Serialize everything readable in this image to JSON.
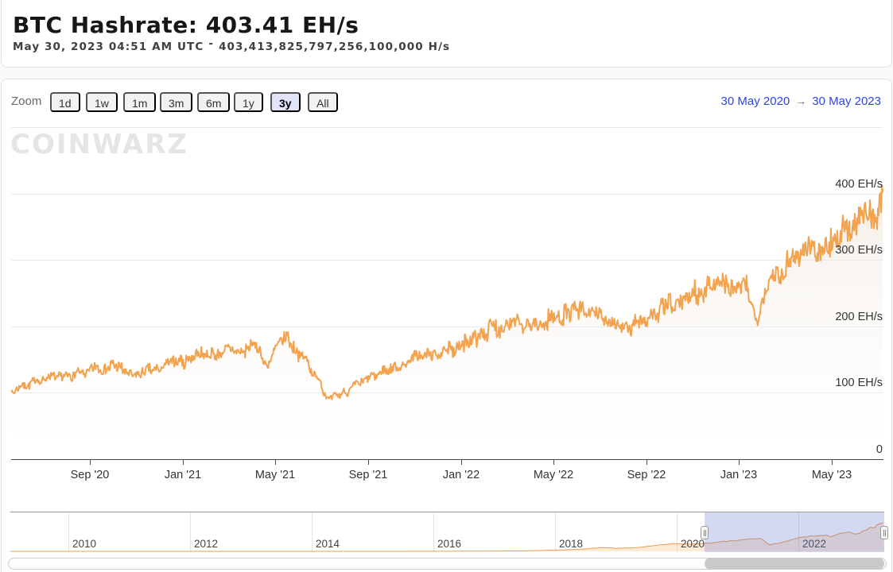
{
  "header": {
    "title": "BTC Hashrate: 403.41 EH/s",
    "subtitle_date": "May 30, 2023 04:51 AM UTC",
    "subtitle_sep": "-",
    "subtitle_value": "403,413,825,797,256,100,000 H/s"
  },
  "watermark": "COINWARZ",
  "toolbar": {
    "zoom_label": "Zoom",
    "buttons": [
      "1d",
      "1w",
      "1m",
      "3m",
      "6m",
      "1y",
      "3y",
      "All"
    ],
    "selected": "3y",
    "range_from": "30 May 2020",
    "range_arrow": "→",
    "range_to": "30 May 2023"
  },
  "colors": {
    "series_orange": "#f2a350",
    "area_top": "rgba(236,222,206,0.55)",
    "area_bottom": "rgba(255,255,255,0.05)",
    "nav_area": "rgba(244,164,78,0.22)",
    "link_blue": "#2e44e8",
    "selected_button_bg": "#e2e4f8",
    "mask_blue": "rgba(102,119,205,0.28)"
  },
  "chart_data": {
    "type": "area",
    "title": "BTC Hashrate",
    "unit": "EH/s",
    "current_value_ehs": 403.41,
    "legend": "none",
    "grid": "horizontal",
    "x_range": [
      "2020-05-30",
      "2023-05-30"
    ],
    "ylim": [
      0,
      501
    ],
    "y_ticks": [
      "400 EH/s",
      "300 EH/s",
      "200 EH/s",
      "100 EH/s",
      "0"
    ],
    "y_tick_values": [
      400,
      300,
      200,
      100,
      0
    ],
    "x_ticks": [
      "Sep '20",
      "Jan '21",
      "May '21",
      "Sep '21",
      "Jan '22",
      "May '22",
      "Sep '22",
      "Jan '23",
      "May '23"
    ],
    "series": [
      {
        "name": "BTC Hashrate (EH/s)",
        "waypoints": [
          [
            "2020-05-30",
            102
          ],
          [
            "2020-06-15",
            112
          ],
          [
            "2020-07-01",
            118
          ],
          [
            "2020-07-20",
            123
          ],
          [
            "2020-08-10",
            125
          ],
          [
            "2020-09-01",
            133
          ],
          [
            "2020-09-20",
            139
          ],
          [
            "2020-10-05",
            141
          ],
          [
            "2020-10-20",
            133
          ],
          [
            "2020-11-01",
            123
          ],
          [
            "2020-11-15",
            131
          ],
          [
            "2020-12-01",
            136
          ],
          [
            "2020-12-20",
            143
          ],
          [
            "2021-01-10",
            152
          ],
          [
            "2021-01-25",
            157
          ],
          [
            "2021-02-10",
            155
          ],
          [
            "2021-03-01",
            163
          ],
          [
            "2021-03-20",
            166
          ],
          [
            "2021-04-05",
            172
          ],
          [
            "2021-04-16",
            142
          ],
          [
            "2021-04-28",
            168
          ],
          [
            "2021-05-10",
            182
          ],
          [
            "2021-05-20",
            172
          ],
          [
            "2021-06-05",
            148
          ],
          [
            "2021-06-20",
            122
          ],
          [
            "2021-07-03",
            89
          ],
          [
            "2021-07-20",
            100
          ],
          [
            "2021-08-05",
            112
          ],
          [
            "2021-08-25",
            122
          ],
          [
            "2021-09-10",
            132
          ],
          [
            "2021-09-25",
            140
          ],
          [
            "2021-10-10",
            147
          ],
          [
            "2021-10-25",
            153
          ],
          [
            "2021-11-10",
            159
          ],
          [
            "2021-11-25",
            163
          ],
          [
            "2021-12-10",
            171
          ],
          [
            "2021-12-25",
            176
          ],
          [
            "2022-01-10",
            191
          ],
          [
            "2022-01-25",
            196
          ],
          [
            "2022-02-10",
            202
          ],
          [
            "2022-02-25",
            206
          ],
          [
            "2022-03-10",
            201
          ],
          [
            "2022-03-25",
            206
          ],
          [
            "2022-04-10",
            214
          ],
          [
            "2022-04-25",
            221
          ],
          [
            "2022-05-10",
            223
          ],
          [
            "2022-05-25",
            218
          ],
          [
            "2022-06-10",
            214
          ],
          [
            "2022-06-25",
            206
          ],
          [
            "2022-07-10",
            199
          ],
          [
            "2022-07-25",
            206
          ],
          [
            "2022-08-10",
            216
          ],
          [
            "2022-08-25",
            223
          ],
          [
            "2022-09-10",
            232
          ],
          [
            "2022-09-25",
            241
          ],
          [
            "2022-10-10",
            254
          ],
          [
            "2022-10-25",
            263
          ],
          [
            "2022-11-10",
            262
          ],
          [
            "2022-11-25",
            258
          ],
          [
            "2022-12-10",
            254
          ],
          [
            "2022-12-24",
            214
          ],
          [
            "2023-01-05",
            268
          ],
          [
            "2023-01-20",
            286
          ],
          [
            "2023-02-05",
            301
          ],
          [
            "2023-02-20",
            313
          ],
          [
            "2023-03-10",
            322
          ],
          [
            "2023-03-25",
            332
          ],
          [
            "2023-04-10",
            341
          ],
          [
            "2023-04-25",
            347
          ],
          [
            "2023-05-05",
            358
          ],
          [
            "2023-05-15",
            368
          ],
          [
            "2023-05-24",
            372
          ],
          [
            "2023-05-29",
            385
          ],
          [
            "2023-05-30",
            403.41
          ]
        ]
      }
    ],
    "navigator": {
      "x_ticks": [
        "2010",
        "2012",
        "2014",
        "2016",
        "2018",
        "2020",
        "2022"
      ],
      "selected_range": [
        "30 May 2020",
        "30 May 2023"
      ],
      "waypoints": [
        [
          2009.05,
          0.001
        ],
        [
          2013.0,
          0.02
        ],
        [
          2014.5,
          0.25
        ],
        [
          2015.5,
          0.45
        ],
        [
          2016.3,
          1.5
        ],
        [
          2017.0,
          4
        ],
        [
          2017.5,
          6.5
        ],
        [
          2017.95,
          15
        ],
        [
          2018.4,
          28
        ],
        [
          2018.75,
          50
        ],
        [
          2019.0,
          42
        ],
        [
          2019.3,
          48
        ],
        [
          2019.6,
          75
        ],
        [
          2019.95,
          105
        ],
        [
          2020.15,
          98
        ],
        [
          2020.42,
          102
        ],
        [
          2020.7,
          130
        ],
        [
          2021.0,
          148
        ],
        [
          2021.2,
          165
        ],
        [
          2021.37,
          180
        ],
        [
          2021.52,
          92
        ],
        [
          2021.75,
          122
        ],
        [
          2022.0,
          183
        ],
        [
          2022.2,
          205
        ],
        [
          2022.4,
          222
        ],
        [
          2022.55,
          205
        ],
        [
          2022.8,
          258
        ],
        [
          2022.99,
          235
        ],
        [
          2023.1,
          290
        ],
        [
          2023.25,
          330
        ],
        [
          2023.41,
          400
        ]
      ]
    }
  }
}
